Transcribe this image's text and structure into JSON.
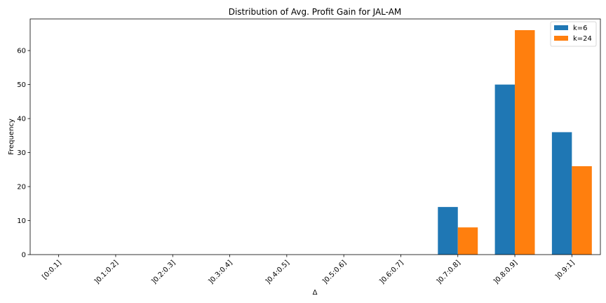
{
  "chart_data": {
    "type": "bar",
    "title": "Distribution of Avg. Profit Gain for JAL-AM",
    "xlabel": "Δ",
    "ylabel": "Frequency",
    "categories": [
      "[0:0.1]",
      "]0.1:0.2]",
      "]0.2:0.3]",
      "]0.3:0.4]",
      "]0.4:0.5]",
      "]0.5:0.6]",
      "]0.6:0.7]",
      "]0.7:0.8]",
      "]0.8:0.9]",
      "]0.9:1]"
    ],
    "series": [
      {
        "name": "k=6",
        "color": "#1f77b4",
        "values": [
          0,
          0,
          0,
          0,
          0,
          0,
          0,
          14,
          50,
          36
        ]
      },
      {
        "name": "k=24",
        "color": "#ff7f0e",
        "values": [
          0,
          0,
          0,
          0,
          0,
          0,
          0,
          8,
          66,
          26
        ]
      }
    ],
    "ylim": [
      0,
      69.3
    ],
    "yticks": [
      0,
      10,
      20,
      30,
      40,
      50,
      60
    ],
    "legend_position": "top-right",
    "grid": false
  }
}
